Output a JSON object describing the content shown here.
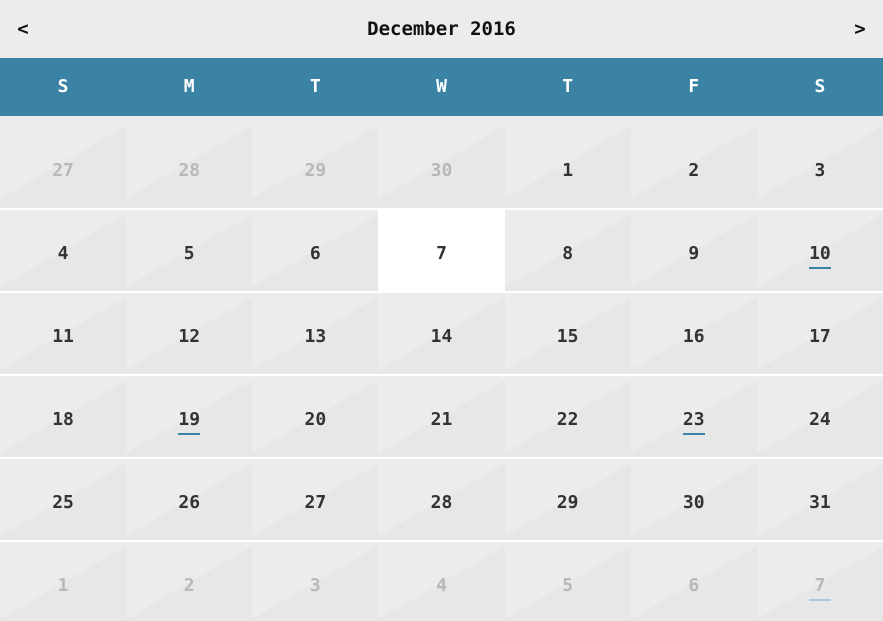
{
  "header": {
    "prev_label": "<",
    "next_label": ">",
    "title": "December 2016"
  },
  "weekdays": [
    "S",
    "M",
    "T",
    "W",
    "T",
    "F",
    "S"
  ],
  "colors": {
    "accent": "#3a83a4",
    "today_bg": "#ffffff",
    "other_month_text": "#b8b8b8"
  },
  "weeks": [
    [
      {
        "label": "27",
        "other": true
      },
      {
        "label": "28",
        "other": true
      },
      {
        "label": "29",
        "other": true
      },
      {
        "label": "30",
        "other": true
      },
      {
        "label": "1"
      },
      {
        "label": "2"
      },
      {
        "label": "3"
      }
    ],
    [
      {
        "label": "4"
      },
      {
        "label": "5"
      },
      {
        "label": "6"
      },
      {
        "label": "7",
        "today": true
      },
      {
        "label": "8"
      },
      {
        "label": "9"
      },
      {
        "label": "10",
        "event": true
      }
    ],
    [
      {
        "label": "11"
      },
      {
        "label": "12"
      },
      {
        "label": "13"
      },
      {
        "label": "14"
      },
      {
        "label": "15"
      },
      {
        "label": "16"
      },
      {
        "label": "17"
      }
    ],
    [
      {
        "label": "18"
      },
      {
        "label": "19",
        "event": true
      },
      {
        "label": "20"
      },
      {
        "label": "21"
      },
      {
        "label": "22"
      },
      {
        "label": "23",
        "event": true
      },
      {
        "label": "24"
      }
    ],
    [
      {
        "label": "25"
      },
      {
        "label": "26"
      },
      {
        "label": "27"
      },
      {
        "label": "28"
      },
      {
        "label": "29"
      },
      {
        "label": "30"
      },
      {
        "label": "31"
      }
    ],
    [
      {
        "label": "1",
        "other": true
      },
      {
        "label": "2",
        "other": true
      },
      {
        "label": "3",
        "other": true
      },
      {
        "label": "4",
        "other": true
      },
      {
        "label": "5",
        "other": true
      },
      {
        "label": "6",
        "other": true
      },
      {
        "label": "7",
        "other": true,
        "event": true
      }
    ]
  ]
}
